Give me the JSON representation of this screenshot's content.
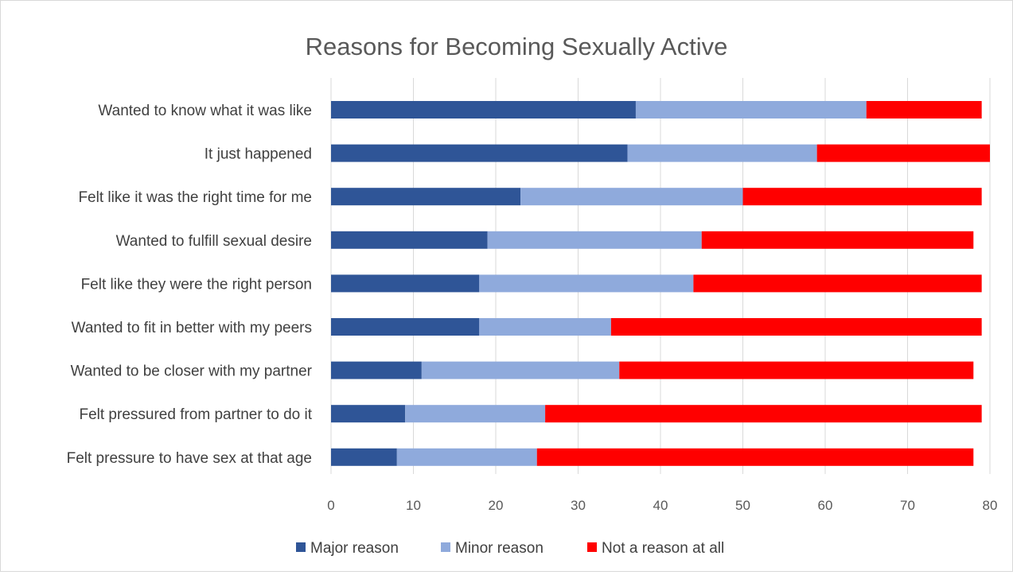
{
  "chart_data": {
    "type": "bar",
    "orientation": "horizontal",
    "stacked": true,
    "title": "Reasons for Becoming Sexually Active",
    "categories": [
      "Wanted to know what it was like",
      "It just happened",
      "Felt like it was the right time for me",
      "Wanted to fulfill sexual desire",
      "Felt like they were the right person",
      "Wanted to fit in better with my peers",
      "Wanted to be closer with my partner",
      "Felt pressured from partner to do it",
      "Felt pressure to have sex at that age"
    ],
    "series": [
      {
        "name": "Major reason",
        "color": "#2f5597",
        "values": [
          37,
          36,
          23,
          19,
          18,
          18,
          11,
          9,
          8
        ]
      },
      {
        "name": "Minor reason",
        "color": "#8faadc",
        "values": [
          28,
          23,
          27,
          26,
          26,
          16,
          24,
          17,
          17
        ]
      },
      {
        "name": "Not a reason at all",
        "color": "#ff0000",
        "values": [
          14,
          21,
          29,
          33,
          35,
          45,
          43,
          53,
          53
        ]
      }
    ],
    "xlim": [
      0,
      80
    ],
    "xticks": [
      0,
      10,
      20,
      30,
      40,
      50,
      60,
      70,
      80
    ],
    "grid": true,
    "legend_position": "bottom"
  }
}
